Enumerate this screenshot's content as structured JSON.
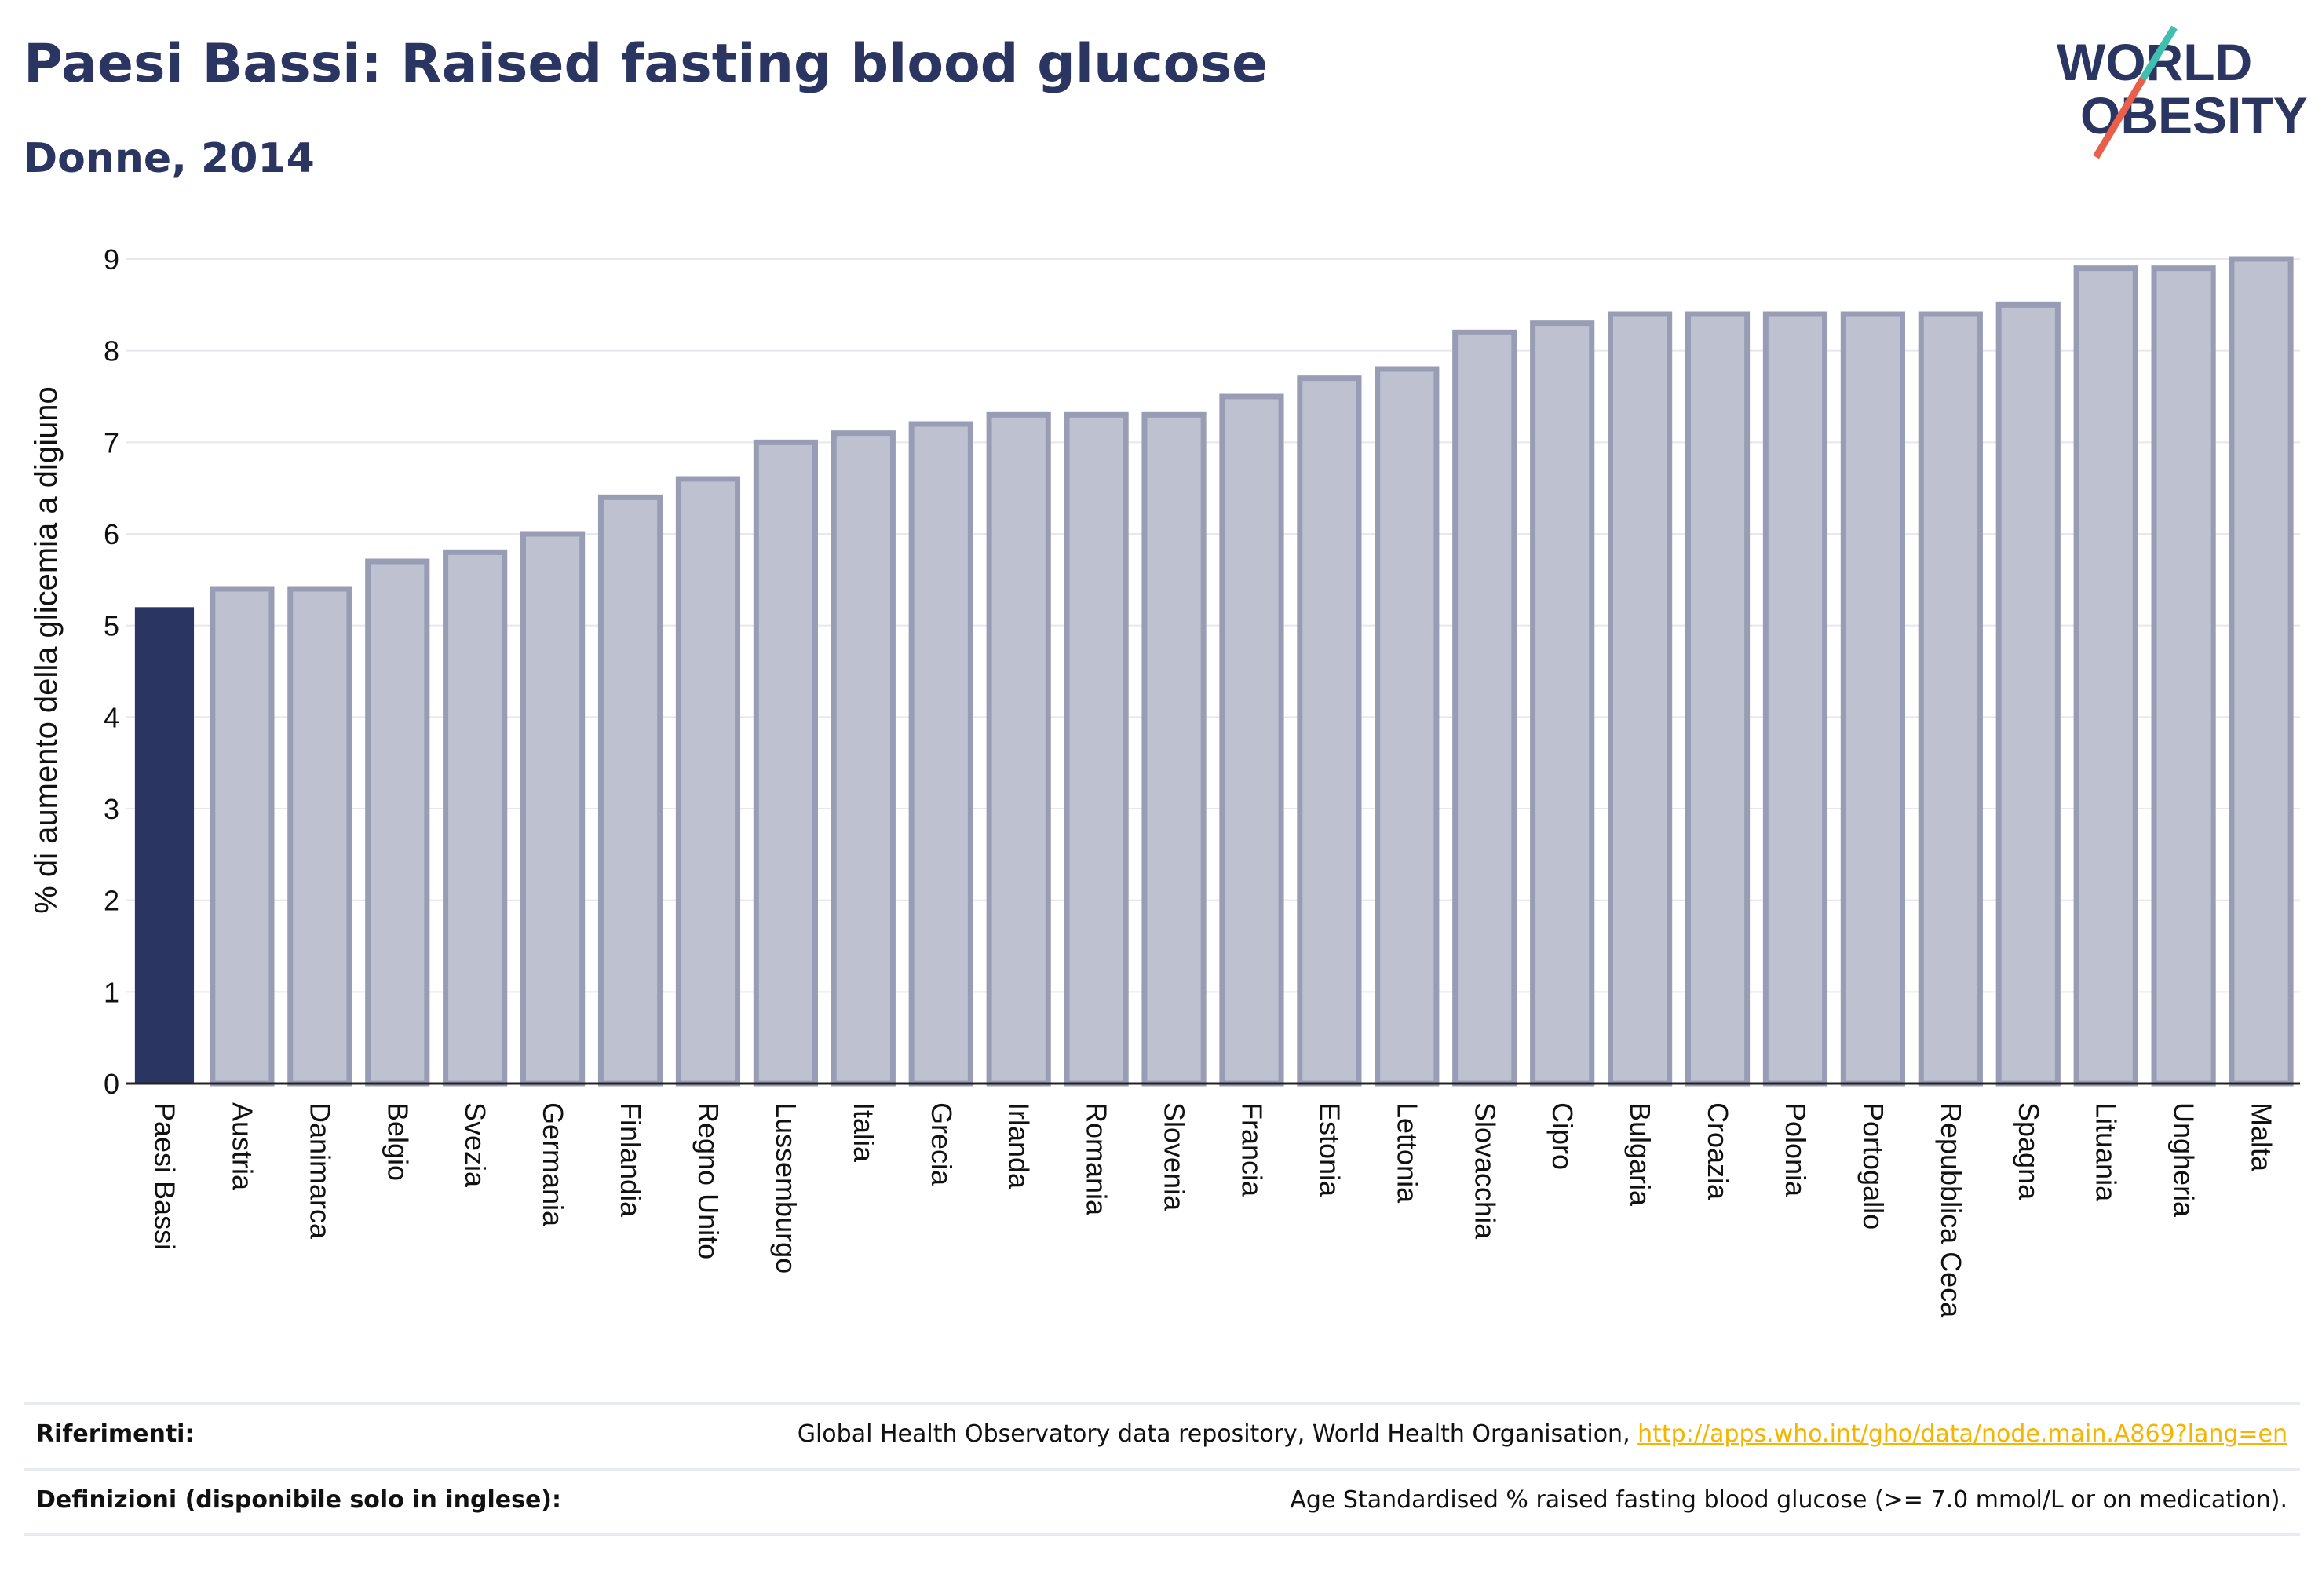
{
  "header": {
    "title": "Paesi Bassi: Raised fasting blood glucose",
    "subtitle": "Donne, 2014"
  },
  "logo": {
    "line1": "WORLD",
    "line2": "OBESITY",
    "colors": {
      "text": "#2b3561",
      "slash_teal": "#3fbfb0",
      "slash_red": "#e8604c"
    }
  },
  "colors": {
    "highlight_bar": "#2b3561",
    "other_bar_fill": "#bec2d0",
    "other_bar_stroke": "#989db5",
    "grid": "#e6e8ee",
    "link": "#f4b400"
  },
  "chart_data": {
    "type": "bar",
    "ylabel": "% di aumento della glicemia a digiuno",
    "ylim": [
      0,
      9.2
    ],
    "yticks": [
      0,
      1,
      2,
      3,
      4,
      5,
      6,
      7,
      8,
      9
    ],
    "grid": true,
    "highlight": "Paesi Bassi",
    "categories": [
      "Paesi Bassi",
      "Austria",
      "Danimarca",
      "Belgio",
      "Svezia",
      "Germania",
      "Finlandia",
      "Regno Unito",
      "Lussemburgo",
      "Italia",
      "Grecia",
      "Irlanda",
      "Romania",
      "Slovenia",
      "Francia",
      "Estonia",
      "Lettonia",
      "Slovacchia",
      "Cipro",
      "Bulgaria",
      "Croazia",
      "Polonia",
      "Portogallo",
      "Repubblica Ceca",
      "Spagna",
      "Lituania",
      "Ungheria",
      "Malta"
    ],
    "values": [
      5.2,
      5.4,
      5.4,
      5.7,
      5.8,
      6.0,
      6.4,
      6.6,
      7.0,
      7.1,
      7.2,
      7.3,
      7.3,
      7.3,
      7.5,
      7.7,
      7.8,
      8.2,
      8.3,
      8.4,
      8.4,
      8.4,
      8.4,
      8.4,
      8.5,
      8.9,
      8.9,
      9.0
    ]
  },
  "footer": {
    "references_label": "Riferimenti:",
    "references_text": "Global Health Observatory data repository, World Health Organisation, ",
    "references_link": "http://apps.who.int/gho/data/node.main.A869?lang=en",
    "definitions_label": "Definizioni (disponibile solo in inglese):",
    "definitions_text": "Age Standardised % raised fasting blood glucose (>= 7.0 mmol/L or on medication)."
  }
}
